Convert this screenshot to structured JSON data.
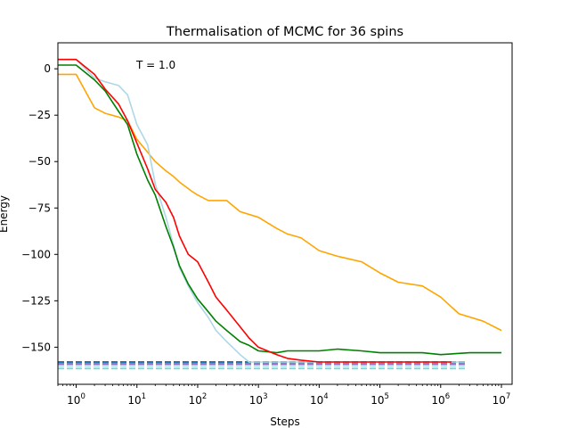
{
  "chart_data": {
    "type": "line",
    "title": "Thermalisation of MCMC for 36 spins",
    "xlabel": "Steps",
    "ylabel": "Energy",
    "annotation": "T = 1.0",
    "xscale": "log",
    "xlim": [
      0.5,
      15000000
    ],
    "ylim": [
      -170,
      14
    ],
    "grid": false,
    "xticks": [
      {
        "value": 1,
        "base": "10",
        "exp": "0"
      },
      {
        "value": 10,
        "base": "10",
        "exp": "1"
      },
      {
        "value": 100,
        "base": "10",
        "exp": "2"
      },
      {
        "value": 1000,
        "base": "10",
        "exp": "3"
      },
      {
        "value": 10000,
        "base": "10",
        "exp": "4"
      },
      {
        "value": 100000,
        "base": "10",
        "exp": "5"
      },
      {
        "value": 1000000,
        "base": "10",
        "exp": "6"
      },
      {
        "value": 10000000,
        "base": "10",
        "exp": "7"
      }
    ],
    "yticks": [
      0,
      -25,
      -50,
      -75,
      -100,
      -125,
      -150
    ],
    "series": [
      {
        "color": "#ffa500",
        "x": [
          0.5,
          1,
          2,
          3,
          5,
          7,
          10,
          15,
          20,
          30,
          40,
          50,
          80,
          100,
          150,
          300,
          500,
          1000,
          2000,
          3000,
          5000,
          10000,
          20000,
          50000,
          100000,
          200000,
          500000,
          1000000,
          2000000,
          5000000,
          10000000
        ],
        "y": [
          -3,
          -3,
          -21,
          -24,
          -26,
          -28,
          -38,
          -45,
          -50,
          -55,
          -58,
          -61,
          -66,
          -68,
          -71,
          -71,
          -77,
          -80,
          -86,
          -89,
          -91,
          -98,
          -101,
          -104,
          -110,
          -115,
          -117,
          -123,
          -132,
          -136,
          -141
        ]
      },
      {
        "color": "#add8e6",
        "x": [
          0.5,
          1,
          2,
          3,
          5,
          7,
          10,
          15,
          20,
          30,
          40,
          50,
          70,
          100,
          150,
          200,
          300,
          500,
          700,
          1000,
          2000,
          5000,
          10000,
          50000,
          100000,
          500000,
          1000000,
          2500000
        ],
        "y": [
          5,
          5,
          -5,
          -7,
          -9,
          -14,
          -30,
          -41,
          -62,
          -80,
          -95,
          -107,
          -117,
          -126,
          -134,
          -141,
          -147,
          -154,
          -158,
          -158,
          -158,
          -158,
          -158,
          -158,
          -158,
          -158,
          -158,
          -158
        ]
      },
      {
        "color": "#008000",
        "x": [
          0.5,
          1,
          2,
          3,
          5,
          7,
          10,
          15,
          20,
          30,
          40,
          50,
          70,
          100,
          150,
          200,
          300,
          500,
          700,
          1000,
          2000,
          3000,
          5000,
          10000,
          20000,
          50000,
          100000,
          500000,
          1000000,
          3000000,
          10000000
        ],
        "y": [
          2,
          2,
          -6,
          -12,
          -23,
          -30,
          -46,
          -60,
          -68,
          -85,
          -96,
          -106,
          -116,
          -124,
          -131,
          -136,
          -141,
          -147,
          -149,
          -152,
          -153,
          -152,
          -152,
          -152,
          -151,
          -152,
          -153,
          -153,
          -154,
          -153,
          -153
        ]
      },
      {
        "color": "#ff0000",
        "x": [
          0.5,
          1,
          2,
          3,
          5,
          7,
          10,
          15,
          20,
          30,
          40,
          50,
          70,
          100,
          150,
          200,
          300,
          500,
          700,
          1000,
          2000,
          3000,
          5000,
          10000,
          20000,
          50000,
          100000,
          500000,
          1000000,
          1500000
        ],
        "y": [
          5,
          5,
          -3,
          -11,
          -19,
          -28,
          -40,
          -54,
          -65,
          -72,
          -80,
          -90,
          -100,
          -104,
          -115,
          -123,
          -130,
          -139,
          -145,
          -150,
          -154,
          -156,
          -157,
          -158,
          -158,
          -158,
          -158,
          -158,
          -158,
          -158
        ]
      }
    ],
    "reference_lines": [
      {
        "y": -158,
        "x_end": 2500000,
        "color": "#1f77b4",
        "dashed": true
      },
      {
        "y": -159,
        "x_end": 2500000,
        "color": "#9467bd",
        "dashed": true
      },
      {
        "y": -160,
        "x_end": 2500000,
        "color": "#add8e6",
        "dashed": true
      },
      {
        "y": -161.5,
        "x_end": 2500000,
        "color": "#7fdbdb",
        "dashed": true
      }
    ]
  }
}
